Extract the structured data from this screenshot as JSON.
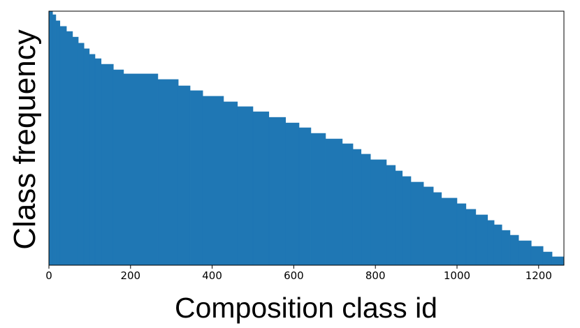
{
  "chart_data": {
    "type": "histogram",
    "x_label": "Composition class id",
    "y_label": "Class frequency",
    "color": "#1f77b4",
    "bins": [
      0,
      9,
      17,
      27,
      43,
      58,
      72,
      86,
      99,
      113,
      128,
      158,
      183,
      267,
      317,
      346,
      377,
      428,
      462,
      500,
      539,
      580,
      613,
      642,
      678,
      719,
      745,
      765,
      788,
      827,
      849,
      866,
      887,
      918,
      942,
      962,
      1000,
      1022,
      1046,
      1075,
      1091,
      1110,
      1130,
      1151,
      1182,
      1211,
      1233,
      1262
    ],
    "values": [
      100,
      98.6,
      96.2,
      94.0,
      92.0,
      89.8,
      87.4,
      85.2,
      83.0,
      81.3,
      79.1,
      76.9,
      75.3,
      73.1,
      70.6,
      68.7,
      66.5,
      64.3,
      62.4,
      60.4,
      58.2,
      56.0,
      54.1,
      51.9,
      49.7,
      47.8,
      45.6,
      43.7,
      41.5,
      39.3,
      37.1,
      34.9,
      32.7,
      30.8,
      28.6,
      26.4,
      24.2,
      22.0,
      19.8,
      17.6,
      15.9,
      13.7,
      11.8,
      9.6,
      7.4,
      5.2,
      3.3
    ],
    "xlim": [
      0,
      1262
    ],
    "xticks": [
      0,
      200,
      400,
      600,
      800,
      1000,
      1200
    ],
    "ylim": [
      0,
      100
    ]
  }
}
